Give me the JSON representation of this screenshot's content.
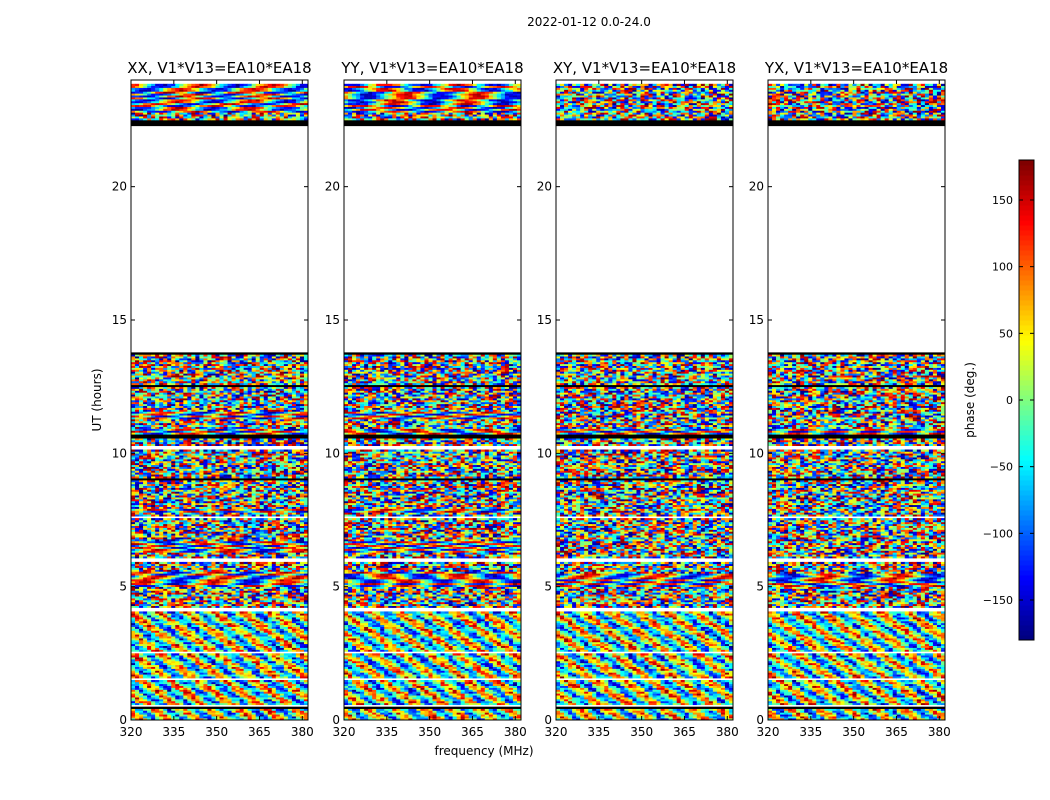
{
  "figure_title": "2022-01-12 0.0-24.0",
  "chart_data": {
    "type": "heatmap",
    "suptitle": "2022-01-12 0.0-24.0",
    "xlabel": "frequency (MHz)",
    "ylabel": "UT (hours)",
    "xlim": [
      320,
      382
    ],
    "ylim": [
      0,
      24
    ],
    "xticks": [
      320,
      335,
      350,
      365,
      380
    ],
    "yticks": [
      0,
      5,
      10,
      15,
      20
    ],
    "colorbar": {
      "label": "phase (deg.)",
      "range": [
        -180,
        180
      ],
      "ticks": [
        -150,
        -100,
        -50,
        0,
        50,
        100,
        150
      ],
      "tick_labels": [
        "−150",
        "−100",
        "−50",
        "0",
        "50",
        "100",
        "150"
      ],
      "colormap": "jet",
      "colors": [
        "#00007f",
        "#0000ff",
        "#007fff",
        "#00ffff",
        "#7fff7f",
        "#ffff00",
        "#ff7f00",
        "#ff0000",
        "#7f0000"
      ]
    },
    "panels": [
      {
        "title": "XX, V1*V13=EA10*EA18",
        "structured_band_hours": [
          [
            5.0,
            5.6
          ],
          [
            6.3,
            6.7
          ],
          [
            7.8,
            7.9
          ],
          [
            10.7,
            10.9
          ],
          [
            11.3,
            11.6
          ],
          [
            22.8,
            23.9
          ]
        ]
      },
      {
        "title": "YY, V1*V13=EA10*EA18",
        "structured_band_hours": [
          [
            5.0,
            5.6
          ],
          [
            6.3,
            6.7
          ],
          [
            7.8,
            7.9
          ],
          [
            10.7,
            10.9
          ],
          [
            11.3,
            11.6
          ],
          [
            22.8,
            23.9
          ]
        ]
      },
      {
        "title": "XY, V1*V13=EA10*EA18",
        "structured_band_hours": [
          [
            5.0,
            5.5
          ],
          [
            10.7,
            10.9
          ]
        ]
      },
      {
        "title": "YX, V1*V13=EA10*EA18",
        "structured_band_hours": [
          [
            5.0,
            5.5
          ],
          [
            10.7,
            10.9
          ]
        ]
      }
    ],
    "data_gap_hours": [
      [
        13.8,
        22.3
      ]
    ],
    "flagged_hours": [
      [
        22.3,
        22.5
      ],
      [
        13.7,
        13.8
      ],
      [
        12.5,
        12.6
      ],
      [
        10.6,
        10.7
      ],
      [
        9.0,
        9.05
      ],
      [
        6.2,
        6.25
      ],
      [
        4.2,
        4.25
      ],
      [
        0.45,
        0.5
      ]
    ],
    "blank_hours": [
      [
        10.15,
        10.3
      ],
      [
        7.6,
        7.65
      ],
      [
        5.95,
        6.05
      ],
      [
        4.1,
        4.2
      ],
      [
        2.5,
        2.55
      ],
      [
        1.5,
        1.55
      ],
      [
        0.5,
        0.55
      ],
      [
        23.85,
        24.0
      ]
    ]
  }
}
